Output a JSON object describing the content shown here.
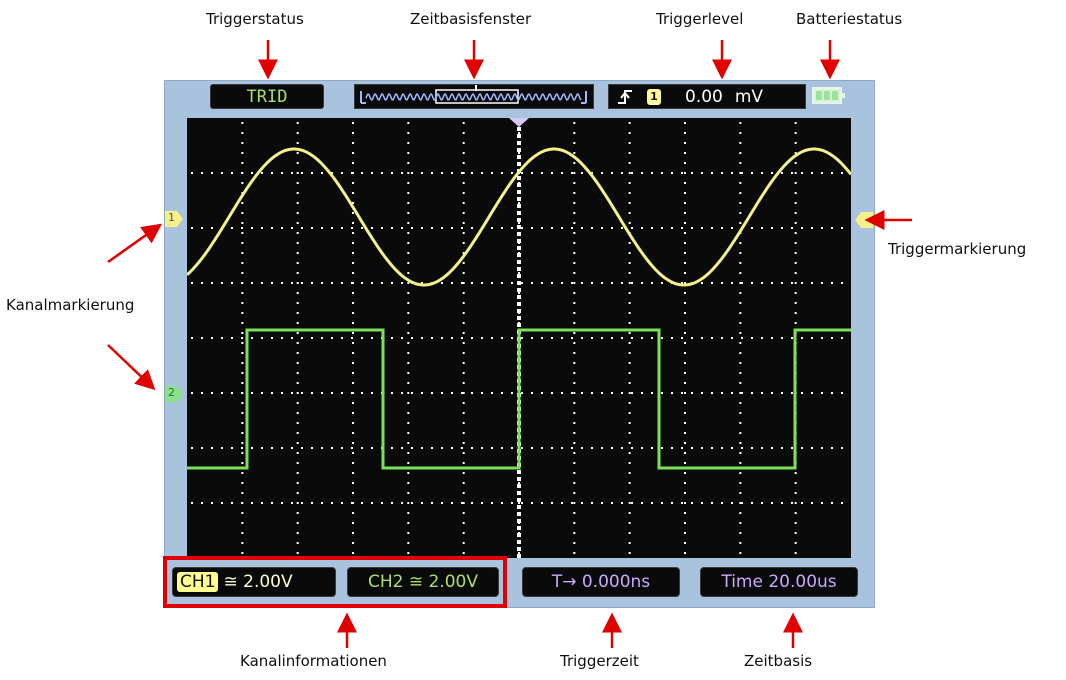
{
  "annotations": {
    "triggerstatus": "Triggerstatus",
    "zeitbasisfenster": "Zeitbasisfenster",
    "triggerlevel": "Triggerlevel",
    "batteriestatus": "Batteriestatus",
    "triggermarkierung": "Triggermarkierung",
    "kanalmarkierung": "Kanalmarkierung",
    "kanalinformationen": "Kanalinformationen",
    "triggerzeit": "Triggerzeit",
    "zeitbasis": "Zeitbasis"
  },
  "top_bar": {
    "trigger_status": "TRID",
    "trigger_channel": "1",
    "trigger_level": "0.00",
    "trigger_level_unit": "mV"
  },
  "bottom_bar": {
    "ch1_label": "CH1",
    "ch1_value": "≅ 2.00V",
    "ch2_text": "CH2 ≅ 2.00V",
    "trigger_time": "T→  0.000ns",
    "time_base": "Time  20.00us"
  },
  "markers": {
    "ch1": "1",
    "ch2": "2"
  },
  "colors": {
    "ch1_trace": "#f4f08a",
    "ch2_trace": "#7ee05a",
    "frame": "#a9c2dd",
    "highlight": "#e00000",
    "screen": "#0a0a0a",
    "value_text": "#c9a9ff"
  },
  "icons": {
    "trigger_edge": "rising-edge-icon",
    "battery": "battery-icon"
  }
}
